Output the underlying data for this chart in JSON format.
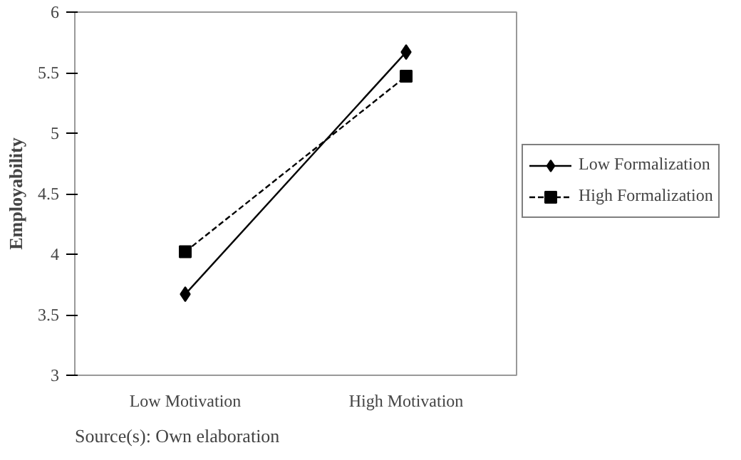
{
  "chart_data": {
    "type": "line",
    "ylabel": "Employability",
    "categories": [
      "Low Motivation",
      "High Motivation"
    ],
    "series": [
      {
        "name": "Low Formalization",
        "color": "#000000",
        "values": [
          3.67,
          5.67
        ],
        "marker": "diamond",
        "line_style": "solid"
      },
      {
        "name": "High Formalization",
        "color": "#000000",
        "values": [
          4.02,
          5.47
        ],
        "marker": "square",
        "line_style": "dashed"
      }
    ],
    "ylim": [
      3,
      6
    ],
    "yticks": [
      3,
      3.5,
      4,
      4.5,
      5,
      5.5,
      6
    ],
    "grid": false,
    "legend": "right",
    "annotations": [
      "Source(s): Own elaboration"
    ]
  }
}
